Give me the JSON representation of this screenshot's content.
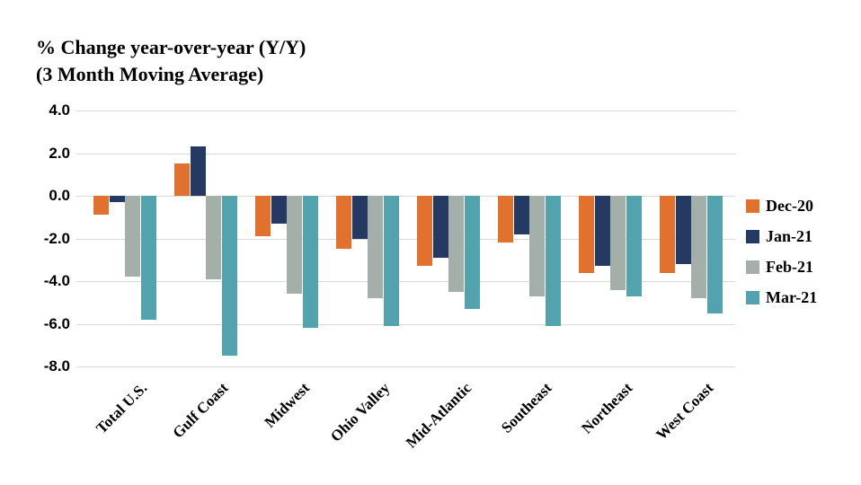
{
  "title": {
    "line1": "% Change year-over-year (Y/Y)",
    "line2": "(3 Month Moving Average)"
  },
  "chart_data": {
    "type": "bar",
    "title": "% Change year-over-year (Y/Y) (3 Month Moving Average)",
    "categories": [
      "Total U.S.",
      "Gulf Coast",
      "Midwest",
      "Ohio Valley",
      "Mid-Atlantic",
      "Southeast",
      "Northeast",
      "West Coast"
    ],
    "series": [
      {
        "name": "Dec-20",
        "color": "#E0712F",
        "values": [
          -0.9,
          1.5,
          -1.9,
          -2.5,
          -3.3,
          -2.2,
          -3.6,
          -3.6
        ]
      },
      {
        "name": "Jan-21",
        "color": "#253A63",
        "values": [
          -0.3,
          2.3,
          -1.3,
          -2.0,
          -2.9,
          -1.8,
          -3.3,
          -3.2
        ]
      },
      {
        "name": "Feb-21",
        "color": "#A4AFA9",
        "values": [
          -3.8,
          -3.9,
          -4.6,
          -4.8,
          -4.5,
          -4.7,
          -4.4,
          -4.8
        ]
      },
      {
        "name": "Mar-21",
        "color": "#52A3AE",
        "values": [
          -5.8,
          -7.5,
          -6.2,
          -6.1,
          -5.3,
          -6.1,
          -4.7,
          -5.5
        ]
      }
    ],
    "xlabel": "",
    "ylabel": "",
    "ylim": [
      -8.0,
      4.0
    ],
    "yticks": [
      4.0,
      2.0,
      0.0,
      -2.0,
      -4.0,
      -6.0,
      -8.0
    ],
    "ytick_labels": [
      "4.0",
      "2.0",
      "0.0",
      "-2.0",
      "-4.0",
      "-6.0",
      "-8.0"
    ],
    "grid": true,
    "legend_position": "right"
  },
  "colors": {
    "background": "#FFFFFF",
    "gridline": "#D9D9D9",
    "text": "#000000"
  }
}
